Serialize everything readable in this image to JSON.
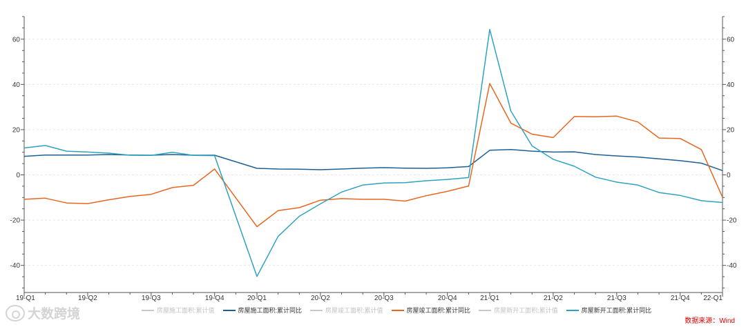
{
  "chart_data": {
    "type": "line",
    "x": [
      "19-Q1",
      "",
      "",
      "19-Q2",
      "",
      "",
      "19-Q3",
      "",
      "",
      "19-Q4",
      "",
      "20-Q1",
      "",
      "",
      "20-Q2",
      "",
      "",
      "20-Q3",
      "",
      "",
      "20-Q4",
      "",
      "21-Q1",
      "",
      "",
      "21-Q2",
      "",
      "",
      "21-Q3",
      "",
      "",
      "21-Q4",
      "",
      "22-Q1"
    ],
    "x_ticks": [
      "19-Q1",
      "19-Q2",
      "19-Q3",
      "19-Q4",
      "20-Q1",
      "20-Q2",
      "20-Q3",
      "20-Q4",
      "21-Q1",
      "21-Q2",
      "21-Q3",
      "21-Q4",
      "22-Q1"
    ],
    "ylim": [
      -52,
      70
    ],
    "y_ticks": [
      -40,
      -20,
      0,
      20,
      40,
      60
    ],
    "grid": true,
    "legend_position": "bottom",
    "legend": [
      {
        "label": "房屋施工面积:累计值",
        "active": false
      },
      {
        "label": "房屋施工面积:累计同比",
        "active": true
      },
      {
        "label": "房屋竣工面积:累计值",
        "active": false
      },
      {
        "label": "房屋竣工面积:累计同比",
        "active": true
      },
      {
        "label": "房屋新开工面积:累计值",
        "active": false
      },
      {
        "label": "房屋新开工面积:累计同比",
        "active": true
      }
    ],
    "series": [
      {
        "name": "房屋施工面积:累计同比",
        "color": "#1a5f95",
        "values": [
          8.2,
          8.8,
          8.8,
          8.8,
          9.0,
          8.8,
          8.7,
          9.0,
          8.7,
          8.7,
          null,
          2.9,
          2.6,
          2.5,
          2.3,
          2.6,
          3.0,
          3.2,
          3.0,
          2.9,
          3.1,
          3.7,
          10.9,
          11.2,
          10.5,
          10.1,
          10.2,
          9.0,
          8.4,
          7.9,
          7.1,
          6.3,
          5.2,
          1.9
        ]
      },
      {
        "name": "房屋竣工面积:累计同比",
        "color": "#e8651f",
        "values": [
          -10.8,
          -10.3,
          -12.4,
          -12.7,
          -11.0,
          -9.5,
          -8.6,
          -5.6,
          -4.6,
          2.6,
          null,
          -22.9,
          -15.8,
          -14.5,
          -11.2,
          -10.5,
          -10.8,
          -10.8,
          -11.6,
          -9.2,
          -7.3,
          -4.9,
          40.4,
          22.9,
          18.0,
          16.5,
          25.8,
          25.7,
          26.0,
          23.4,
          16.3,
          16.1,
          11.2,
          -9.9
        ]
      },
      {
        "name": "房屋新开工面积:累计同比",
        "color": "#2da2bf",
        "values": [
          11.9,
          13.0,
          10.5,
          10.1,
          9.6,
          8.7,
          8.6,
          10.0,
          8.6,
          8.5,
          null,
          -44.9,
          -27.2,
          -18.3,
          -12.8,
          -7.6,
          -4.5,
          -3.6,
          -3.4,
          -2.6,
          -2.0,
          -1.2,
          64.3,
          28.2,
          12.8,
          6.9,
          3.8,
          -1.0,
          -3.2,
          -4.5,
          -7.8,
          -9.1,
          -11.4,
          -12.2
        ]
      }
    ]
  },
  "brand": {
    "logo_text": "大数跨境"
  },
  "source_text": "数据来源：Wind"
}
